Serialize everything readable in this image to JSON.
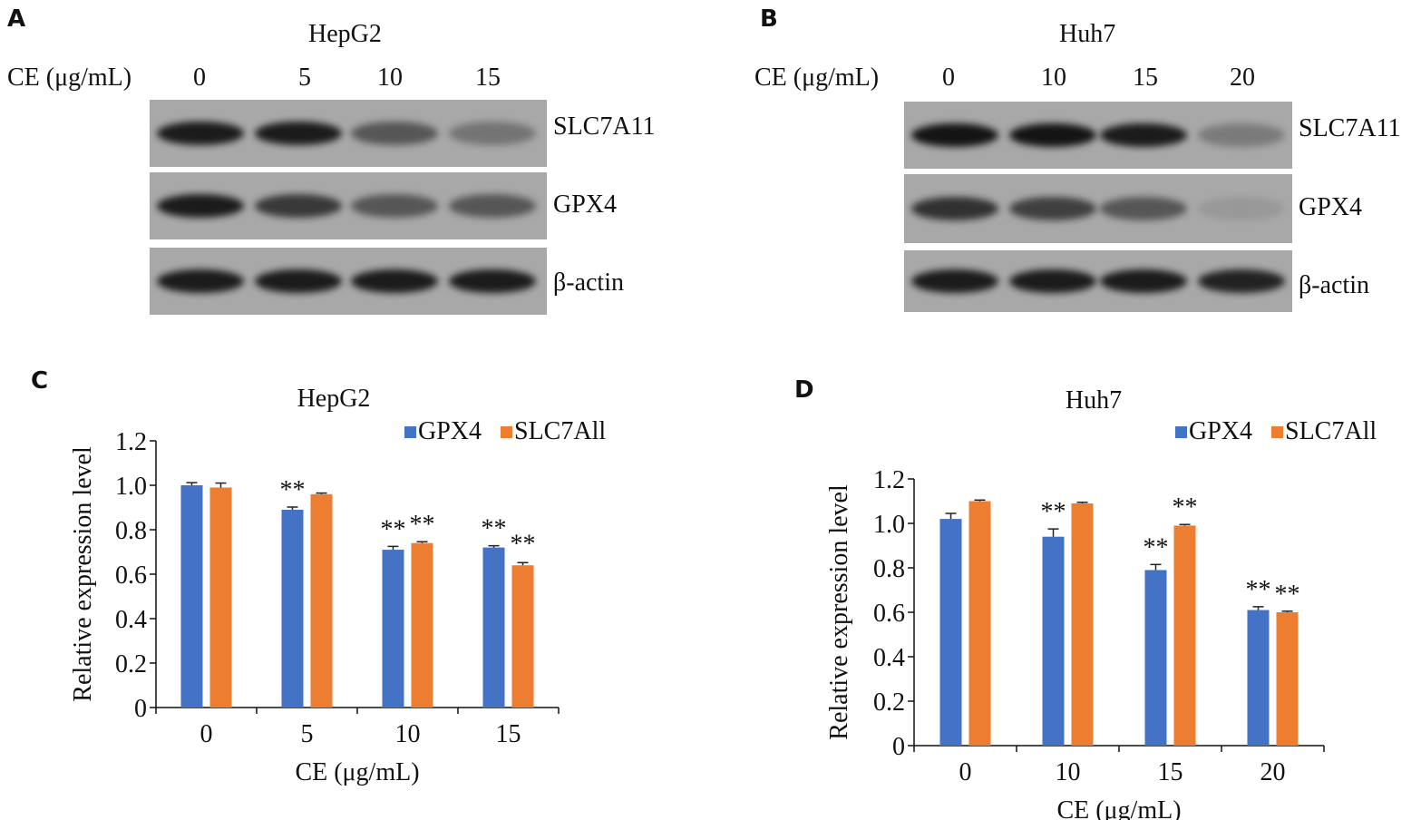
{
  "panels": {
    "a": {
      "letter": "A",
      "cell_line": "HepG2",
      "condition_label": "CE (μg/mL)",
      "doses": [
        "0",
        "5",
        "10",
        "15"
      ],
      "rows": [
        {
          "label": "SLC7A11",
          "intensity": [
            0.95,
            0.95,
            0.55,
            0.35
          ]
        },
        {
          "label": "GPX4",
          "intensity": [
            0.95,
            0.75,
            0.55,
            0.55
          ]
        },
        {
          "label": "β-actin",
          "intensity": [
            0.95,
            0.95,
            0.95,
            0.95
          ]
        }
      ]
    },
    "b": {
      "letter": "B",
      "cell_line": "Huh7",
      "condition_label": "CE (μg/mL)",
      "doses": [
        "0",
        "10",
        "15",
        "20"
      ],
      "rows": [
        {
          "label": "SLC7A11",
          "intensity": [
            1.0,
            1.0,
            0.95,
            0.3
          ]
        },
        {
          "label": "GPX4",
          "intensity": [
            0.8,
            0.7,
            0.55,
            0.1
          ]
        },
        {
          "label": "β-actin",
          "intensity": [
            0.95,
            0.95,
            0.95,
            0.9
          ]
        }
      ]
    },
    "c": {
      "letter": "C"
    },
    "d": {
      "letter": "D"
    }
  },
  "colors": {
    "gpx4": "#4472c4",
    "slc7a11": "#ed7d31",
    "blot_bg": "#a8a8a8",
    "band": "#141414"
  },
  "chart_data": [
    {
      "type": "bar",
      "title": "HepG2",
      "xlabel": "CE (μg/mL)",
      "ylabel": "Relative expression level",
      "categories": [
        "0",
        "5",
        "10",
        "15"
      ],
      "ylim": [
        0,
        1.2
      ],
      "yticks": [
        "0",
        "0.2",
        "0.4",
        "0.6",
        "0.8",
        "1.0",
        "1.2"
      ],
      "legend_position": "top-right",
      "series": [
        {
          "name": "GPX4",
          "values": [
            1.0,
            0.89,
            0.71,
            0.72
          ],
          "errors": [
            0.012,
            0.012,
            0.015,
            0.008
          ],
          "annotations": [
            "",
            "**",
            "**",
            "**"
          ]
        },
        {
          "name": "SLC7All",
          "values": [
            0.99,
            0.96,
            0.74,
            0.64
          ],
          "errors": [
            0.02,
            0.005,
            0.006,
            0.012
          ],
          "annotations": [
            "",
            "",
            "**",
            "**"
          ]
        }
      ]
    },
    {
      "type": "bar",
      "title": "Huh7",
      "xlabel": "CE (μg/mL)",
      "ylabel": "Relative expression level",
      "categories": [
        "0",
        "10",
        "15",
        "20"
      ],
      "ylim": [
        0,
        1.2
      ],
      "yticks": [
        "0",
        "0.2",
        "0.4",
        "0.6",
        "0.8",
        "1.0",
        "1.2"
      ],
      "legend_position": "top-right",
      "series": [
        {
          "name": "GPX4",
          "values": [
            1.02,
            0.94,
            0.79,
            0.61
          ],
          "errors": [
            0.025,
            0.035,
            0.025,
            0.015
          ],
          "annotations": [
            "",
            "**",
            "**",
            "**"
          ]
        },
        {
          "name": "SLC7All",
          "values": [
            1.1,
            1.09,
            0.99,
            0.6
          ],
          "errors": [
            0.005,
            0.005,
            0.005,
            0.005
          ],
          "annotations": [
            "",
            "",
            "**",
            "**"
          ]
        }
      ]
    }
  ]
}
